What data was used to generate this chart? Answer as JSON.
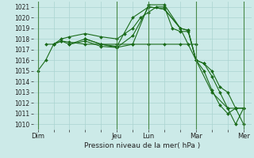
{
  "title": "Pression niveau de la mer( hPa )",
  "ylabel_ticks": [
    1010,
    1011,
    1012,
    1013,
    1014,
    1015,
    1016,
    1017,
    1018,
    1019,
    1020,
    1021
  ],
  "ylim": [
    1009.5,
    1021.5
  ],
  "day_labels": [
    "Dim",
    "",
    "",
    "",
    "",
    "Jeu",
    "",
    "Lun",
    "",
    "",
    "Mar",
    "",
    "",
    "Mer"
  ],
  "day_positions": [
    0,
    1,
    2,
    3,
    4,
    5,
    6,
    7,
    8,
    9,
    10,
    11,
    12,
    13
  ],
  "vline_positions": [
    0,
    5,
    7,
    10,
    13
  ],
  "line_color": "#1a6b1a",
  "bg_color": "#cceae8",
  "grid_color": "#aad4d0",
  "series": [
    [
      0,
      1015,
      0.5,
      1016,
      1,
      1017.5,
      1.5,
      1018,
      2,
      1018.2,
      3,
      1018.5,
      4,
      1018.2,
      5,
      1018,
      5.5,
      1018.5,
      6,
      1019,
      6.5,
      1020,
      7,
      1020.5,
      7.5,
      1021,
      8,
      1021,
      8.5,
      1019,
      9,
      1018.7,
      9.5,
      1018.7,
      10,
      1016,
      10.5,
      1015.7,
      11,
      1015,
      11.5,
      1013.5,
      12,
      1013,
      12.5,
      1011.5,
      13,
      1010
    ],
    [
      0.5,
      1017.5,
      1,
      1017.5,
      1.5,
      1017.8,
      2,
      1017.7,
      3,
      1017.5,
      4,
      1017.5,
      5,
      1017.5,
      6,
      1017.5,
      7,
      1017.5,
      8,
      1017.5,
      9,
      1017.5,
      9.5,
      1017.5,
      10,
      1017.5
    ],
    [
      1,
      1017.5,
      1.5,
      1017.8,
      2,
      1017.5,
      3,
      1017.8,
      4,
      1017.3,
      5,
      1017.2,
      6,
      1018.3,
      7,
      1021,
      8,
      1020.8,
      9,
      1019,
      9.5,
      1018.8,
      10,
      1016,
      10.5,
      1015.7,
      11,
      1014.5,
      11.5,
      1013,
      12,
      1011.5,
      12.5,
      1011.5,
      13,
      1011.5
    ],
    [
      2,
      1017.5,
      3,
      1018,
      4,
      1017.5,
      5,
      1017.3,
      6,
      1020,
      7,
      1021,
      8,
      1020.8,
      9,
      1019,
      9.5,
      1018.8,
      10,
      1016,
      10.5,
      1015,
      11,
      1013.2,
      11.5,
      1011.8,
      12,
      1011,
      12.5,
      1011.5,
      13,
      1011.5
    ],
    [
      3,
      1018,
      4,
      1017.5,
      5,
      1017.2,
      6,
      1017.5,
      7,
      1021.2,
      8,
      1021.2,
      9,
      1019,
      10,
      1016,
      11,
      1013,
      12,
      1011.5,
      12.5,
      1010,
      13,
      1011.5
    ]
  ]
}
